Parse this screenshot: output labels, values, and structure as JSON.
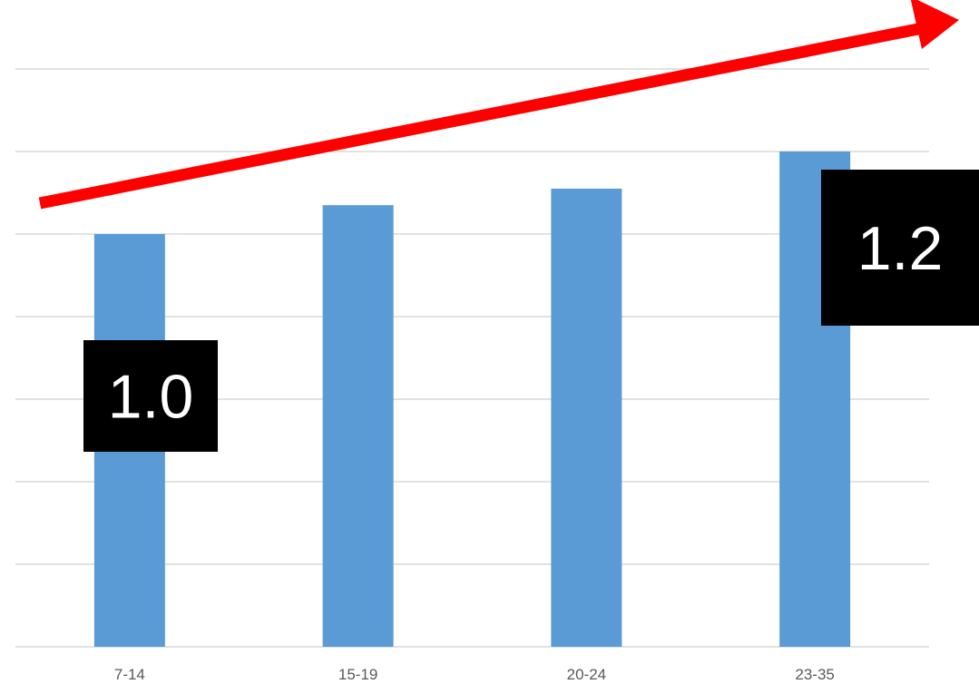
{
  "chart_data": {
    "type": "bar",
    "categories": [
      "7-14",
      "15-19",
      "20-24",
      "23-35"
    ],
    "values": [
      1.0,
      1.07,
      1.11,
      1.2
    ],
    "ylim": [
      0,
      1.4
    ],
    "grid": true,
    "xlabel": "",
    "ylabel": "",
    "title": "",
    "bar_color": "#5b9bd5",
    "gridline_color": "#d9d9d9",
    "annotations": [
      {
        "text": "1.0",
        "category": "7-14",
        "background": "#000000",
        "color": "#ffffff"
      },
      {
        "text": "1.2",
        "category": "23-35",
        "background": "#000000",
        "color": "#ffffff"
      }
    ],
    "trend_arrow": {
      "color": "#ff0000",
      "direction": "up-right"
    }
  }
}
